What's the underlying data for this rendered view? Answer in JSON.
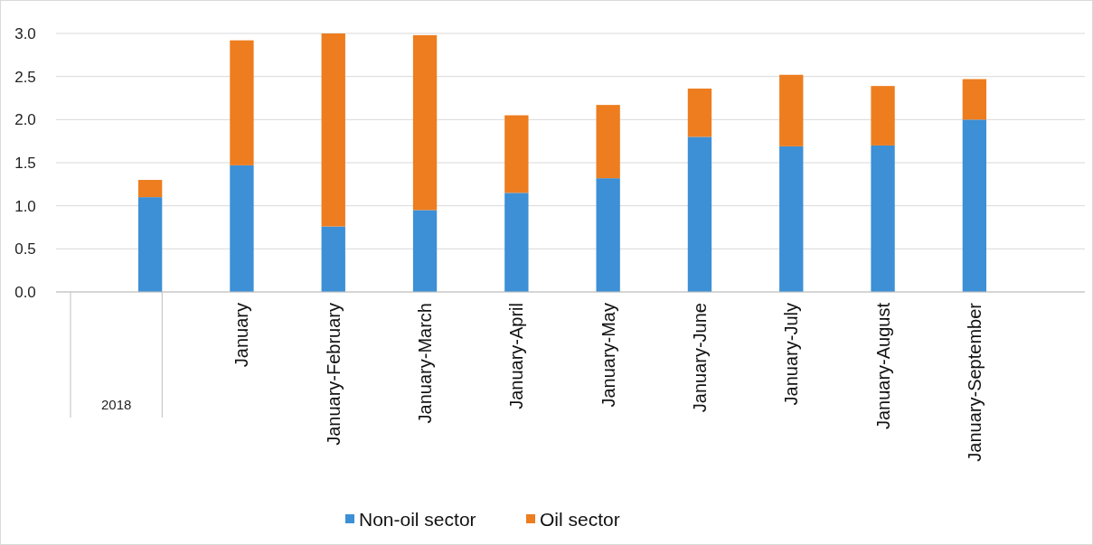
{
  "chart_data": {
    "type": "bar",
    "stacked": true,
    "categories": [
      null,
      "January",
      "January-February",
      "January-March",
      "January-April",
      "January-May",
      "January-June",
      "January-July",
      "January-August",
      "January-September"
    ],
    "series": [
      {
        "name": "Non-oil sector",
        "color": "#3d8fd6",
        "values": [
          1.1,
          1.47,
          0.76,
          0.95,
          1.15,
          1.32,
          1.8,
          1.69,
          1.7,
          2.0
        ]
      },
      {
        "name": "Oil sector",
        "color": "#ed7d1f",
        "values": [
          0.2,
          1.45,
          2.24,
          2.03,
          0.9,
          0.85,
          0.56,
          0.83,
          0.69,
          0.47
        ]
      }
    ],
    "ylim": [
      0,
      3
    ],
    "yticks": [
      {
        "value": 0,
        "label": "0.0"
      },
      {
        "value": 0.5,
        "label": "0.5"
      },
      {
        "value": 1,
        "label": "1.0"
      },
      {
        "value": 1.5,
        "label": "1.5"
      },
      {
        "value": 2,
        "label": "2.0"
      },
      {
        "value": 2.5,
        "label": "2.5"
      },
      {
        "value": 3,
        "label": "3.0"
      }
    ],
    "grid": "y",
    "legend": "bottom",
    "annotations": [
      "2018"
    ]
  }
}
